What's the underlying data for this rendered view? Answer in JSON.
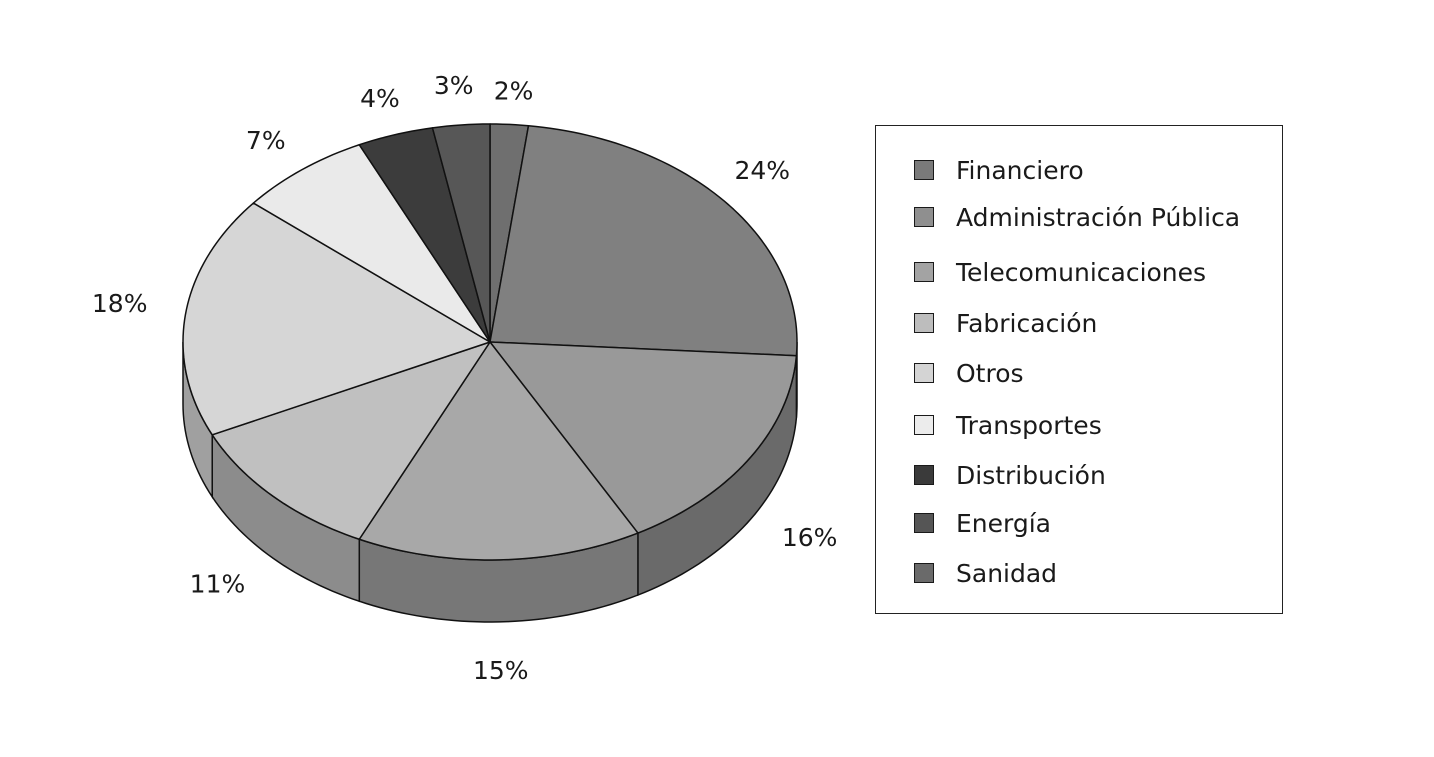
{
  "chart_data": {
    "type": "pie",
    "title": "",
    "legend_position": "right",
    "slices": [
      {
        "name": "Sanidad",
        "value": 2,
        "label": "2%",
        "color": "#6f6f6f",
        "side_color": "#555555"
      },
      {
        "name": "Financiero",
        "value": 24,
        "label": "24%",
        "color": "#808080",
        "side_color": "#5a5a5a"
      },
      {
        "name": "Administración Pública",
        "value": 16,
        "label": "16%",
        "color": "#999999",
        "side_color": "#6a6a6a"
      },
      {
        "name": "Telecomunicaciones",
        "value": 15,
        "label": "15%",
        "color": "#a8a8a8",
        "side_color": "#777777"
      },
      {
        "name": "Fabricación",
        "value": 11,
        "label": "11%",
        "color": "#c0c0c0",
        "side_color": "#8c8c8c"
      },
      {
        "name": "Otros",
        "value": 18,
        "label": "18%",
        "color": "#d6d6d6",
        "side_color": "#a0a0a0"
      },
      {
        "name": "Transportes",
        "value": 7,
        "label": "7%",
        "color": "#eaeaea",
        "side_color": "#b8b8b8"
      },
      {
        "name": "Distribución",
        "value": 4,
        "label": "4%",
        "color": "#3c3c3c",
        "side_color": "#2a2a2a"
      },
      {
        "name": "Energía",
        "value": 3,
        "label": "3%",
        "color": "#575757",
        "side_color": "#404040"
      }
    ]
  },
  "legend": {
    "items": [
      {
        "label": "Financiero",
        "color": "#7a7a7a"
      },
      {
        "label": "Administración Pública",
        "color": "#8f8f8f"
      },
      {
        "label": "Telecomunicaciones",
        "color": "#a3a3a3"
      },
      {
        "label": "Fabricación",
        "color": "#bdbdbd"
      },
      {
        "label": "Otros",
        "color": "#d4d4d4"
      },
      {
        "label": "Transportes",
        "color": "#ececec"
      },
      {
        "label": "Distribución",
        "color": "#3a3a3a"
      },
      {
        "label": "Energía",
        "color": "#555555"
      },
      {
        "label": "Sanidad",
        "color": "#6a6a6a"
      }
    ]
  }
}
